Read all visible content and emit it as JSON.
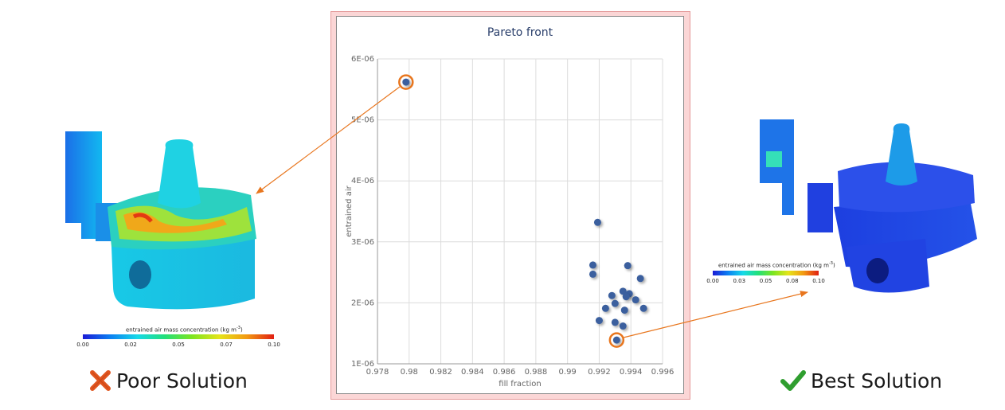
{
  "chart_data": {
    "type": "scatter",
    "title": "Pareto front",
    "xlabel": "fill fraction",
    "ylabel": "entrained air",
    "xlim": [
      0.978,
      0.996
    ],
    "ylim": [
      1e-06,
      6e-06
    ],
    "x_ticks": [
      "0.978",
      "0.98",
      "0.982",
      "0.984",
      "0.986",
      "0.988",
      "0.99",
      "0.992",
      "0.994",
      "0.996"
    ],
    "y_ticks": [
      "1E-06",
      "2E-06",
      "3E-06",
      "4E-06",
      "5E-06",
      "6E-06"
    ],
    "grid": true,
    "points": [
      {
        "x": 0.9798,
        "y": 5.62e-06,
        "highlight": "poor"
      },
      {
        "x": 0.9919,
        "y": 3.32e-06
      },
      {
        "x": 0.9916,
        "y": 2.62e-06
      },
      {
        "x": 0.9938,
        "y": 2.61e-06
      },
      {
        "x": 0.9916,
        "y": 2.47e-06
      },
      {
        "x": 0.9946,
        "y": 2.4e-06
      },
      {
        "x": 0.9935,
        "y": 2.19e-06
      },
      {
        "x": 0.9928,
        "y": 2.12e-06
      },
      {
        "x": 0.9939,
        "y": 2.15e-06
      },
      {
        "x": 0.9937,
        "y": 2.1e-06
      },
      {
        "x": 0.9943,
        "y": 2.05e-06
      },
      {
        "x": 0.993,
        "y": 1.99e-06
      },
      {
        "x": 0.9924,
        "y": 1.91e-06
      },
      {
        "x": 0.9936,
        "y": 1.88e-06
      },
      {
        "x": 0.9948,
        "y": 1.91e-06
      },
      {
        "x": 0.992,
        "y": 1.71e-06
      },
      {
        "x": 0.993,
        "y": 1.68e-06
      },
      {
        "x": 0.9935,
        "y": 1.62e-06
      },
      {
        "x": 0.9931,
        "y": 1.39e-06,
        "highlight": "best"
      }
    ]
  },
  "colors": {
    "point": "#3a5f9e",
    "highlight_ring": "#e8761e",
    "arrow": "#e8761e",
    "cross": "#e0551f",
    "check": "#2f9e2f",
    "title": "#2a3f6b"
  },
  "left_panel": {
    "colorbar_title": "entrained air mass concentration (kg m",
    "colorbar_unit_exp": "-3",
    "colorbar_close": ")",
    "colorbar_ticks": [
      "0.00",
      "0.02",
      "0.05",
      "0.07",
      "0.10"
    ],
    "caption": "Poor Solution",
    "caption_icon": "cross-icon"
  },
  "right_panel": {
    "colorbar_title": "entrained air mass concentration (kg m",
    "colorbar_unit_exp": "-3",
    "colorbar_close": ")",
    "colorbar_ticks": [
      "0.00",
      "0.03",
      "0.05",
      "0.08",
      "0.10"
    ],
    "caption": "Best Solution",
    "caption_icon": "check-icon"
  }
}
